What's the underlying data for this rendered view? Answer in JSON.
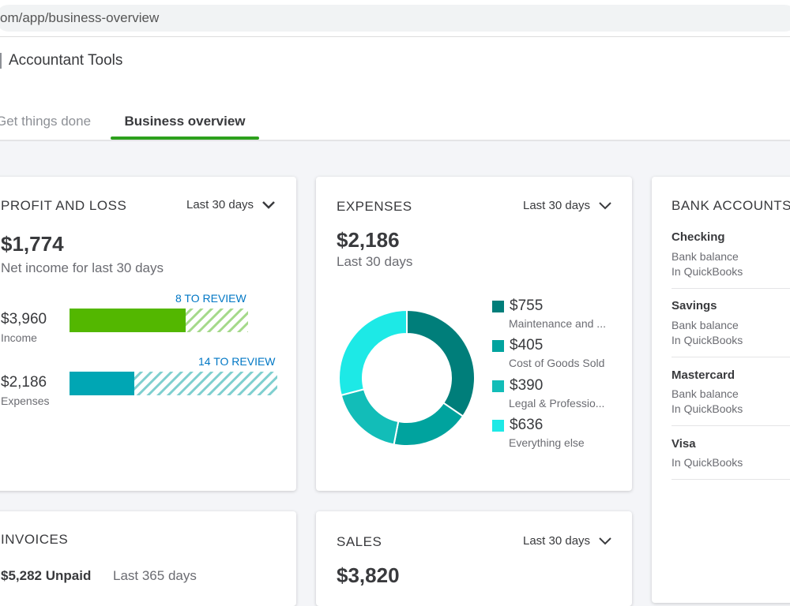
{
  "browser": {
    "url": "om/app/business-overview"
  },
  "header": {
    "tools_label": "Accountant Tools",
    "tabs": [
      {
        "label": "Get things done",
        "active": false
      },
      {
        "label": "Business overview",
        "active": true
      }
    ]
  },
  "colors": {
    "green": "#53b700",
    "teal": "#00a6a4",
    "dark_teal": "#007e7a",
    "cyan": "#1de9e6",
    "link_blue": "#0077c5"
  },
  "profit_loss": {
    "title": "PROFIT AND LOSS",
    "period": "Last 30 days",
    "net_income": "$1,774",
    "net_income_label": "Net income for last 30 days",
    "income": {
      "value": "$3,960",
      "label": "Income",
      "review": "8 TO REVIEW",
      "reviewed_fraction": 0.65
    },
    "expenses": {
      "value": "$2,186",
      "label": "Expenses",
      "review": "14 TO REVIEW",
      "reviewed_fraction": 0.31
    }
  },
  "expenses": {
    "title": "EXPENSES",
    "period": "Last 30 days",
    "total": "$2,186",
    "total_label": "Last 30 days",
    "categories": [
      {
        "amount": "$755",
        "label": "Maintenance and ...",
        "value": 755,
        "color": "#007e7a"
      },
      {
        "amount": "$405",
        "label": "Cost of Goods Sold",
        "value": 405,
        "color": "#00a39e"
      },
      {
        "amount": "$390",
        "label": "Legal & Professio...",
        "value": 390,
        "color": "#12bdb8"
      },
      {
        "amount": "$636",
        "label": "Everything else",
        "value": 636,
        "color": "#1de9e6"
      }
    ]
  },
  "bank_accounts": {
    "title": "BANK ACCOUNTS",
    "accounts": [
      {
        "name": "Checking",
        "line1": "Bank balance",
        "line2": "In QuickBooks"
      },
      {
        "name": "Savings",
        "line1": "Bank balance",
        "line2": "In QuickBooks"
      },
      {
        "name": "Mastercard",
        "line1": "Bank balance",
        "line2": "In QuickBooks"
      },
      {
        "name": "Visa",
        "line1": "",
        "line2": "In QuickBooks"
      }
    ]
  },
  "invoices": {
    "title": "INVOICES",
    "unpaid": "$5,282 Unpaid",
    "period": "Last 365 days"
  },
  "sales": {
    "title": "SALES",
    "period": "Last 30 days",
    "total": "$3,820"
  }
}
